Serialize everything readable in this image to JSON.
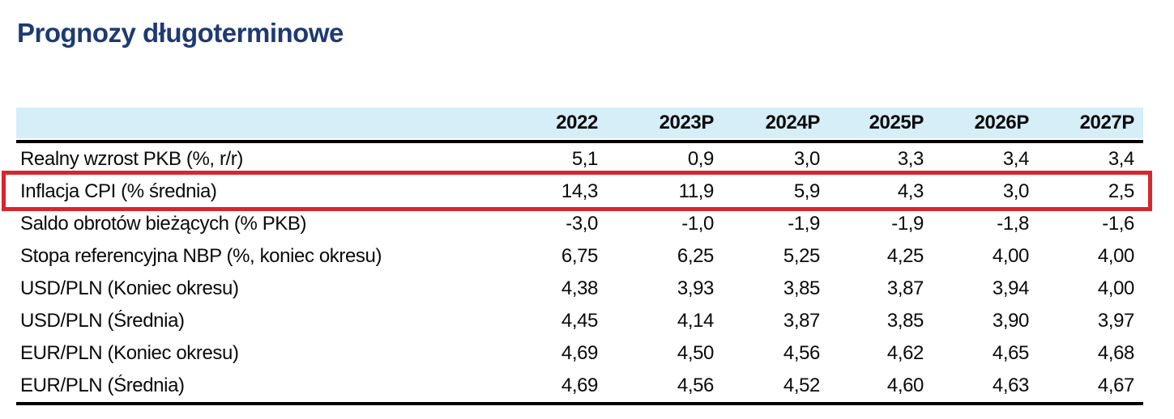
{
  "page_title": "Prognozy długoterminowe",
  "colors": {
    "title": "#1e3a74",
    "header_bg": "#d5eef8",
    "highlight_border": "#d8262c",
    "rule": "#000000",
    "text": "#0a0a0a"
  },
  "table": {
    "columns": [
      "2022",
      "2023P",
      "2024P",
      "2025P",
      "2026P",
      "2027P"
    ],
    "rows": [
      {
        "label": "Realny wzrost PKB (%, r/r)",
        "values": [
          "5,1",
          "0,9",
          "3,0",
          "3,3",
          "3,4",
          "3,4"
        ],
        "highlighted": false
      },
      {
        "label": "Inflacja CPI (% średnia)",
        "values": [
          "14,3",
          "11,9",
          "5,9",
          "4,3",
          "3,0",
          "2,5"
        ],
        "highlighted": true
      },
      {
        "label": "Saldo obrotów bieżących (% PKB)",
        "values": [
          "-3,0",
          "-1,0",
          "-1,9",
          "-1,9",
          "-1,8",
          "-1,6"
        ],
        "highlighted": false
      },
      {
        "label": "Stopa referencyjna NBP (%, koniec okresu)",
        "values": [
          "6,75",
          "6,25",
          "5,25",
          "4,25",
          "4,00",
          "4,00"
        ],
        "highlighted": false
      },
      {
        "label": "USD/PLN (Koniec okresu)",
        "values": [
          "4,38",
          "3,93",
          "3,85",
          "3,87",
          "3,94",
          "4,00"
        ],
        "highlighted": false
      },
      {
        "label": "USD/PLN (Średnia)",
        "values": [
          "4,45",
          "4,14",
          "3,87",
          "3,85",
          "3,90",
          "3,97"
        ],
        "highlighted": false
      },
      {
        "label": "EUR/PLN (Koniec okresu)",
        "values": [
          "4,69",
          "4,50",
          "4,56",
          "4,62",
          "4,65",
          "4,68"
        ],
        "highlighted": false
      },
      {
        "label": "EUR/PLN (Średnia)",
        "values": [
          "4,69",
          "4,56",
          "4,52",
          "4,60",
          "4,63",
          "4,67"
        ],
        "highlighted": false
      }
    ]
  }
}
